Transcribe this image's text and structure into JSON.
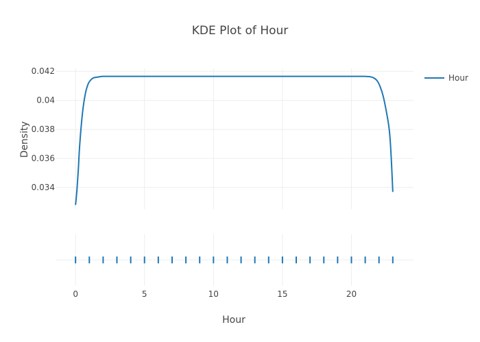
{
  "chart_data": {
    "type": "line",
    "title": "KDE Plot of Hour",
    "xlabel": "Hour",
    "ylabel": "Density",
    "xlim": [
      -1.4,
      24.5
    ],
    "ylim": [
      0.0325,
      0.0422
    ],
    "x_ticks": [
      0,
      5,
      10,
      15,
      20
    ],
    "x_tick_labels": [
      "0",
      "5",
      "10",
      "15",
      "20"
    ],
    "y_ticks": [
      0.034,
      0.036,
      0.038,
      0.04,
      0.042
    ],
    "y_tick_labels": [
      "0.034",
      "0.036",
      "0.038",
      "0.04",
      "0.042"
    ],
    "grid": true,
    "legend_position": "top-right",
    "color": "#1f77b4",
    "series": [
      {
        "name": "Hour",
        "x": [
          0,
          0.1,
          0.2,
          0.3,
          0.5,
          0.7,
          0.9,
          1.1,
          1.3,
          1.6,
          2.0,
          3,
          5,
          10,
          15,
          20,
          21.0,
          21.4,
          21.7,
          21.9,
          22.1,
          22.3,
          22.5,
          22.7,
          22.8,
          22.9,
          23.0
        ],
        "y": [
          0.0328,
          0.0338,
          0.0352,
          0.0369,
          0.0391,
          0.0404,
          0.0411,
          0.0414,
          0.04155,
          0.0416,
          0.04165,
          0.04165,
          0.04165,
          0.04165,
          0.04165,
          0.04165,
          0.04165,
          0.04162,
          0.0415,
          0.0413,
          0.0409,
          0.0403,
          0.0394,
          0.0383,
          0.0374,
          0.0358,
          0.0337
        ]
      }
    ],
    "rug": {
      "x": [
        0,
        1,
        2,
        3,
        4,
        5,
        6,
        7,
        8,
        9,
        10,
        11,
        12,
        13,
        14,
        15,
        16,
        17,
        18,
        19,
        20,
        21,
        22,
        23
      ]
    }
  }
}
